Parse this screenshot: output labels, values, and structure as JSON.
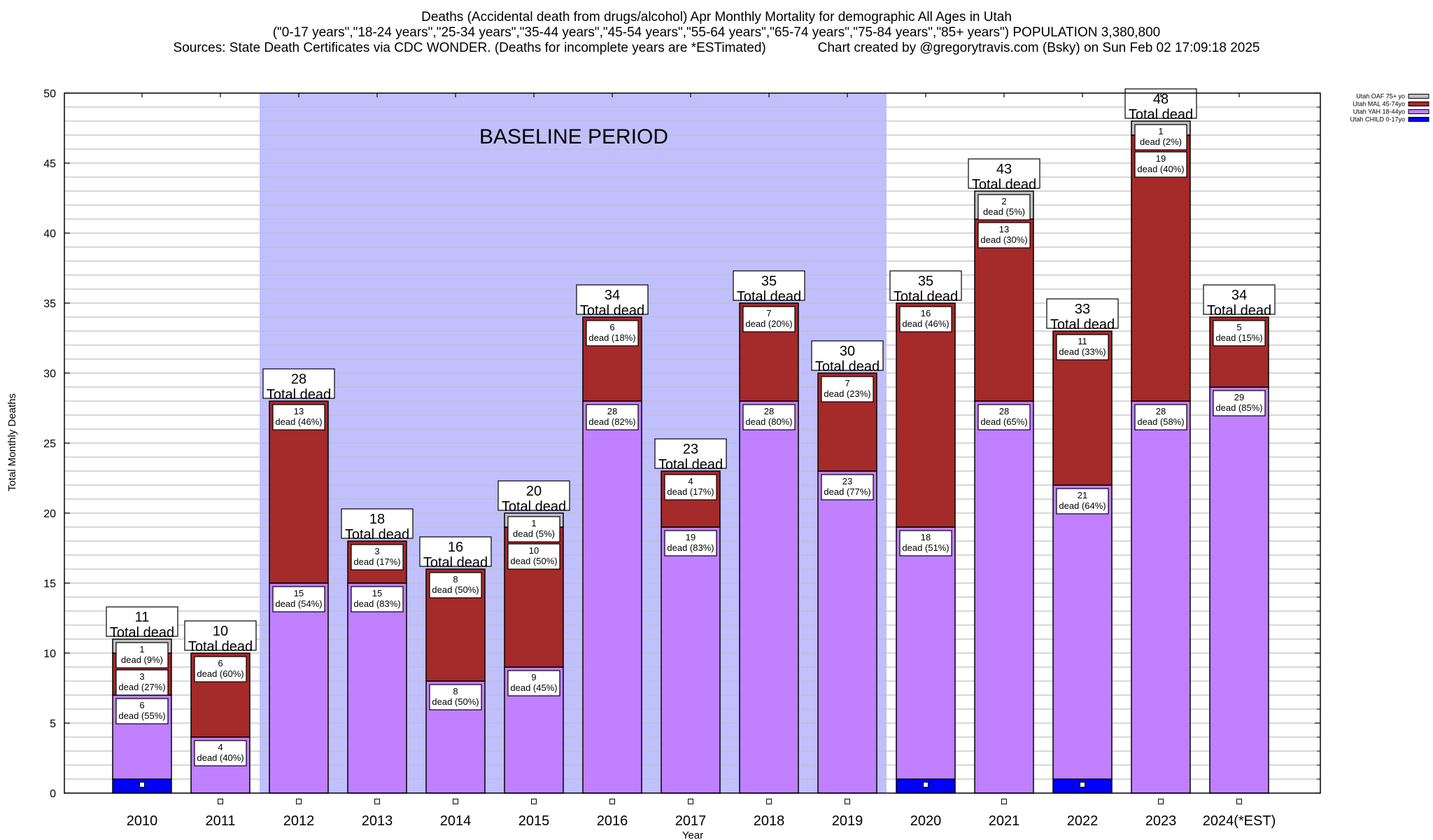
{
  "chart_data": {
    "type": "bar",
    "stacked": true,
    "title": "Deaths (Accidental death from drugs/alcohol) Apr Monthly Mortality for demographic All Ages in Utah",
    "subtitle": "(\"0-17 years\",\"18-24 years\",\"25-34 years\",\"35-44 years\",\"45-54 years\",\"55-64 years\",\"65-74 years\",\"75-84 years\",\"85+ years\") POPULATION 3,380,800",
    "source": "Sources: State Death Certificates via CDC WONDER. (Deaths for incomplete years are *ESTimated)",
    "credit": "Chart created by @gregorytravis.com (Bsky) on Sun Feb 02 17:09:18 2025",
    "xlabel": "Year",
    "ylabel": "Total Monthly Deaths",
    "ylim": [
      0,
      50
    ],
    "yticks": [
      0,
      5,
      10,
      15,
      20,
      25,
      30,
      35,
      40,
      45,
      50
    ],
    "grid": true,
    "legend_position": "top-right",
    "annotation": "BASELINE PERIOD",
    "baseline_range": [
      "2012",
      "2019"
    ],
    "total_label_suffix": "Total dead",
    "categories": [
      "2010",
      "2011",
      "2012",
      "2013",
      "2014",
      "2015",
      "2016",
      "2017",
      "2018",
      "2019",
      "2020",
      "2021",
      "2022",
      "2023",
      "2024(*EST)"
    ],
    "series": [
      {
        "name": "Utah CHILD 0-17yo",
        "color": "#0000ff",
        "values": [
          1,
          0,
          0,
          0,
          0,
          0,
          0,
          0,
          0,
          0,
          1,
          0,
          1,
          0,
          0
        ],
        "labels": [
          null,
          null,
          null,
          null,
          null,
          null,
          null,
          null,
          null,
          null,
          null,
          null,
          null,
          null,
          null
        ]
      },
      {
        "name": "Utah YAH 18-44yo",
        "color": "#c080ff",
        "values": [
          6,
          4,
          15,
          15,
          8,
          9,
          28,
          19,
          28,
          23,
          18,
          28,
          21,
          28,
          29
        ],
        "labels": [
          "dead (55%)",
          "dead (40%)",
          "dead (54%)",
          "dead (83%)",
          "dead (50%)",
          "dead (45%)",
          "dead (82%)",
          "dead (83%)",
          "dead (80%)",
          "dead (77%)",
          "dead (51%)",
          "dead (65%)",
          "dead (64%)",
          "dead (58%)",
          "dead (85%)"
        ]
      },
      {
        "name": "Utah MAL 45-74yo",
        "color": "#a52a2a",
        "values": [
          3,
          6,
          13,
          3,
          8,
          10,
          6,
          4,
          7,
          7,
          16,
          13,
          11,
          19,
          5
        ],
        "labels": [
          "dead (27%)",
          "dead (60%)",
          "dead (46%)",
          "dead (17%)",
          "dead (50%)",
          "dead (50%)",
          "dead (18%)",
          "dead (17%)",
          "dead (20%)",
          "dead (23%)",
          "dead (46%)",
          "dead (30%)",
          "dead (33%)",
          "dead (40%)",
          "dead (15%)"
        ]
      },
      {
        "name": "Utah OAF 75+ yo",
        "color": "#c0c0c0",
        "values": [
          1,
          0,
          0,
          0,
          0,
          1,
          0,
          0,
          0,
          0,
          0,
          2,
          0,
          1,
          0
        ],
        "labels": [
          "dead (9%)",
          null,
          null,
          null,
          null,
          "dead (5%)",
          null,
          null,
          null,
          null,
          null,
          "dead (5%)",
          null,
          "dead (2%)",
          null
        ]
      }
    ],
    "totals": [
      11,
      10,
      28,
      18,
      16,
      20,
      34,
      23,
      35,
      30,
      35,
      43,
      33,
      48,
      34
    ]
  },
  "colors": {
    "baseline_fill": "#c0c0ff",
    "grid": "#c0c0c0",
    "bar_outline": "#000000"
  }
}
